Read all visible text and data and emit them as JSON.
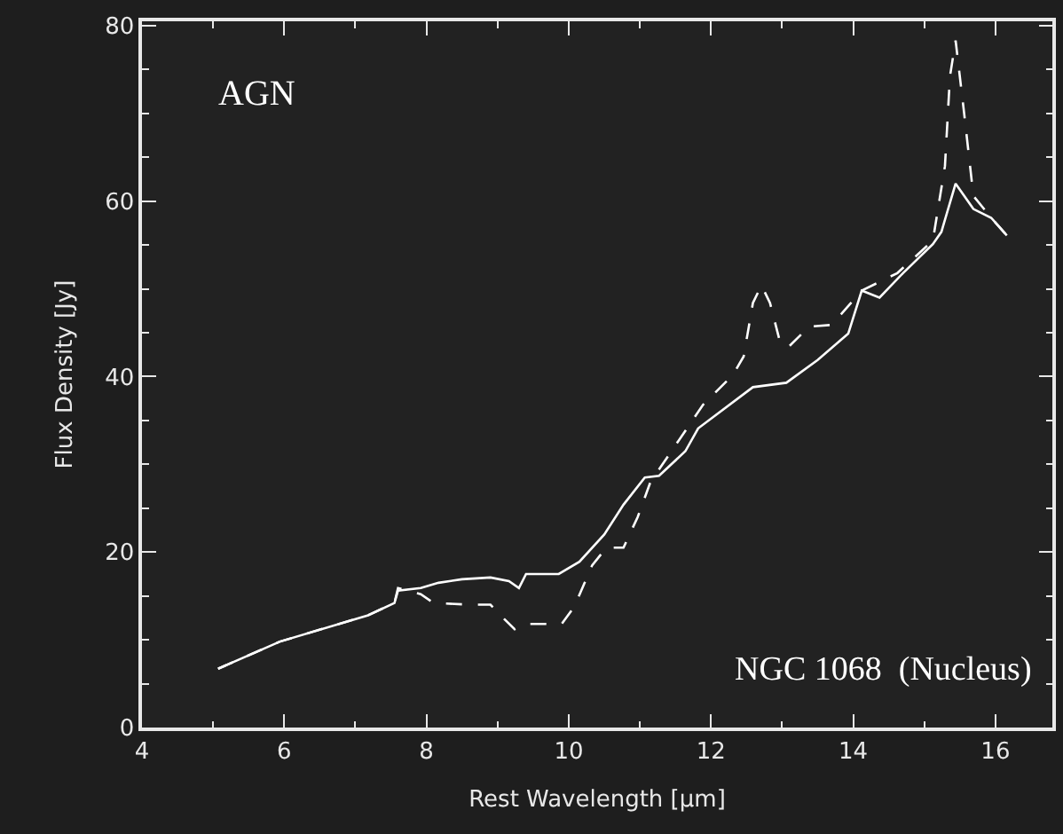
{
  "chart_data": {
    "type": "line",
    "xlabel": "Rest Wavelength [μm]",
    "ylabel": "Flux Density [Jy]",
    "xlim": [
      4,
      16.8
    ],
    "ylim": [
      0,
      80.5
    ],
    "xticks": [
      4,
      6,
      8,
      10,
      12,
      14,
      16
    ],
    "yticks": [
      0,
      20,
      40,
      60,
      80
    ],
    "grid": false,
    "annotations": [
      "AGN",
      "NGC 1068  (Nucleus)"
    ],
    "series": [
      {
        "color": "#ffffff",
        "line_style": "solid",
        "x": [
          5.07,
          5.94,
          7.18,
          7.55,
          7.6,
          7.92,
          8.17,
          8.5,
          8.9,
          9.16,
          9.3,
          9.4,
          9.86,
          10.15,
          10.5,
          10.77,
          11.07,
          11.27,
          11.64,
          11.82,
          12.59,
          13.06,
          13.5,
          13.93,
          14.12,
          14.37,
          14.7,
          15.12,
          15.24,
          15.44,
          15.69,
          15.94,
          16.16
        ],
        "values": [
          6.7,
          9.8,
          12.8,
          14.2,
          15.6,
          15.9,
          16.5,
          16.9,
          17.1,
          16.7,
          15.9,
          17.5,
          17.5,
          18.9,
          22,
          25.4,
          28.5,
          28.7,
          31.5,
          34.1,
          38.8,
          39.3,
          41.9,
          44.9,
          49.8,
          49,
          51.8,
          55.1,
          56.5,
          62,
          59.1,
          58.1,
          56.1
        ]
      },
      {
        "color": "#ffffff",
        "line_style": "dashed",
        "x": [
          5.07,
          5.94,
          7.18,
          7.55,
          7.6,
          7.92,
          8.1,
          8.6,
          8.9,
          9.09,
          9.24,
          9.4,
          9.9,
          10.08,
          10.33,
          10.53,
          10.77,
          10.97,
          11.15,
          11.89,
          12.31,
          12.46,
          12.59,
          12.71,
          12.83,
          12.96,
          13.08,
          13.38,
          13.7,
          14.12,
          14.62,
          15.12,
          15.29,
          15.36,
          15.44,
          15.56,
          15.69,
          15.94,
          16.16
        ],
        "values": [
          6.7,
          9.8,
          12.8,
          14.2,
          15.9,
          15.2,
          14.2,
          14,
          14,
          12.4,
          11.2,
          11.8,
          11.8,
          13.8,
          18.5,
          20.5,
          20.5,
          24,
          28,
          36.8,
          40.2,
          42.3,
          48.4,
          50.4,
          48.4,
          44.3,
          43.3,
          45.7,
          45.9,
          49.8,
          51.8,
          55.5,
          64,
          74.2,
          78.3,
          70,
          60.6,
          58.1,
          56.1
        ]
      }
    ]
  }
}
